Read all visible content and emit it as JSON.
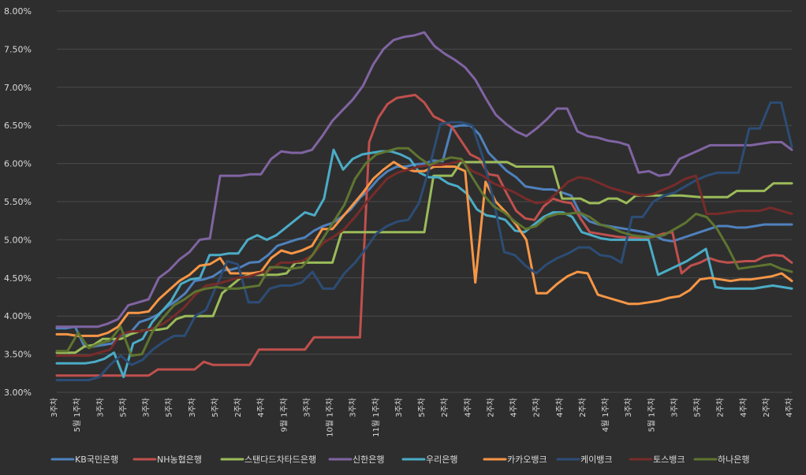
{
  "chart_data": {
    "type": "line",
    "title": "",
    "xlabel": "",
    "ylabel": "",
    "ylim": [
      3.0,
      8.0
    ],
    "y_ticks": [
      "3.00%",
      "3.50%",
      "4.00%",
      "4.50%",
      "5.00%",
      "5.50%",
      "6.00%",
      "6.50%",
      "7.00%",
      "7.50%",
      "8.00%"
    ],
    "grid": true,
    "legend_position": "bottom",
    "x_labels": [
      "3주차",
      "5월 1주차",
      "3주차",
      "5주차",
      "3주차",
      "5주차",
      "3주차",
      "5주차",
      "2주차",
      "4주차",
      "9월 1주차",
      "3주차",
      "10월 1주차",
      "3주차",
      "11월 1주차",
      "3주차",
      "5주차",
      "2주차",
      "4주차",
      "2주차",
      "4주차",
      "2주차",
      "4주차",
      "2주차",
      "4월 1주차",
      "3주차",
      "5월 1주차",
      "3주차",
      "5주차",
      "2주차",
      "4주차",
      "2주차",
      "4주차"
    ],
    "colors": {
      "KB국민은행": "#4f81bd",
      "NH농협은행": "#c0504d",
      "스탠다드차타드은행": "#9bbb59",
      "신한은행": "#8064a2",
      "우리은행": "#4bacc6",
      "카카오뱅크": "#f79646",
      "케이뱅크": "#2c4d75",
      "토스뱅크": "#772c2a",
      "하나은행": "#5f7530"
    },
    "series": [
      {
        "name": "KB국민은행",
        "values": [
          3.84,
          3.84,
          3.86,
          3.6,
          3.6,
          3.62,
          3.64,
          3.75,
          3.78,
          3.92,
          3.96,
          4.02,
          4.12,
          4.2,
          4.3,
          4.46,
          4.48,
          4.52,
          4.6,
          4.61,
          4.64,
          4.7,
          4.71,
          4.8,
          4.92,
          4.96,
          5.0,
          5.03,
          5.12,
          5.18,
          5.22,
          5.3,
          5.4,
          5.55,
          5.66,
          5.8,
          5.9,
          5.96,
          5.96,
          5.99,
          6.0,
          6.04,
          6.03,
          6.48,
          6.5,
          6.5,
          6.38,
          6.14,
          6.02,
          5.9,
          5.82,
          5.7,
          5.68,
          5.66,
          5.66,
          5.62,
          5.58,
          5.34,
          5.24,
          5.2,
          5.18,
          5.16,
          5.14,
          5.12,
          5.1,
          5.06,
          5.0,
          4.98,
          5.02,
          5.06,
          5.1,
          5.14,
          5.18,
          5.18,
          5.16,
          5.16,
          5.18,
          5.2,
          5.2,
          5.2,
          5.2
        ]
      },
      {
        "name": "NH농협은행",
        "values": [
          3.22,
          3.22,
          3.22,
          3.22,
          3.22,
          3.22,
          3.22,
          3.22,
          3.22,
          3.22,
          3.22,
          3.3,
          3.3,
          3.3,
          3.3,
          3.3,
          3.4,
          3.36,
          3.36,
          3.36,
          3.36,
          3.36,
          3.56,
          3.56,
          3.56,
          3.56,
          3.56,
          3.56,
          3.72,
          3.72,
          3.72,
          3.72,
          3.72,
          3.72,
          6.28,
          6.6,
          6.78,
          6.86,
          6.88,
          6.9,
          6.8,
          6.62,
          6.56,
          6.48,
          6.3,
          6.12,
          6.06,
          5.86,
          5.84,
          5.6,
          5.38,
          5.28,
          5.26,
          5.44,
          5.54,
          5.5,
          5.48,
          5.28,
          5.1,
          5.08,
          5.06,
          5.04,
          5.03,
          5.03,
          5.02,
          5.04,
          5.08,
          5.1,
          4.56,
          4.66,
          4.7,
          4.76,
          4.72,
          4.7,
          4.71,
          4.72,
          4.72,
          4.78,
          4.8,
          4.79,
          4.7
        ]
      },
      {
        "name": "스탠다드차타드은행",
        "values": [
          3.52,
          3.52,
          3.52,
          3.6,
          3.62,
          3.7,
          3.7,
          3.7,
          3.76,
          3.8,
          3.82,
          3.82,
          3.84,
          3.96,
          4.0,
          4.0,
          4.0,
          4.0,
          4.3,
          4.4,
          4.5,
          4.54,
          4.54,
          4.54,
          4.54,
          4.56,
          4.7,
          4.7,
          4.7,
          4.7,
          4.7,
          5.1,
          5.1,
          5.1,
          5.1,
          5.1,
          5.1,
          5.1,
          5.1,
          5.1,
          5.1,
          5.84,
          5.84,
          5.84,
          6.02,
          6.02,
          6.02,
          6.02,
          6.02,
          6.02,
          5.96,
          5.96,
          5.96,
          5.96,
          5.96,
          5.54,
          5.54,
          5.54,
          5.48,
          5.48,
          5.54,
          5.54,
          5.48,
          5.58,
          5.58,
          5.58,
          5.58,
          5.58,
          5.58,
          5.57,
          5.56,
          5.56,
          5.56,
          5.56,
          5.64,
          5.64,
          5.64,
          5.64,
          5.74,
          5.74,
          5.74
        ]
      },
      {
        "name": "신한은행",
        "values": [
          3.86,
          3.86,
          3.86,
          3.86,
          3.86,
          3.9,
          3.96,
          4.14,
          4.18,
          4.22,
          4.5,
          4.6,
          4.74,
          4.84,
          5.0,
          5.02,
          5.84,
          5.84,
          5.84,
          5.86,
          5.86,
          6.06,
          6.16,
          6.14,
          6.14,
          6.18,
          6.36,
          6.56,
          6.7,
          6.84,
          7.02,
          7.3,
          7.5,
          7.62,
          7.66,
          7.68,
          7.72,
          7.54,
          7.44,
          7.36,
          7.26,
          7.1,
          6.86,
          6.64,
          6.52,
          6.42,
          6.36,
          6.46,
          6.58,
          6.72,
          6.72,
          6.42,
          6.36,
          6.34,
          6.3,
          6.28,
          6.24,
          5.88,
          5.9,
          5.84,
          5.86,
          6.06,
          6.12,
          6.18,
          6.24,
          6.24,
          6.24,
          6.24,
          6.24,
          6.26,
          6.28,
          6.28,
          6.18
        ]
      },
      {
        "name": "우리은행",
        "values": [
          3.38,
          3.38,
          3.38,
          3.38,
          3.4,
          3.44,
          3.52,
          3.2,
          3.64,
          3.7,
          3.92,
          4.06,
          4.2,
          4.42,
          4.48,
          4.5,
          4.8,
          4.8,
          4.82,
          4.82,
          5.0,
          5.06,
          5.0,
          5.06,
          5.16,
          5.26,
          5.36,
          5.32,
          5.54,
          6.18,
          5.92,
          6.06,
          6.12,
          6.14,
          6.16,
          6.16,
          6.12,
          6.06,
          5.88,
          5.82,
          5.82,
          5.74,
          5.7,
          5.6,
          5.4,
          5.32,
          5.3,
          5.26,
          5.12,
          5.1,
          5.2,
          5.3,
          5.36,
          5.36,
          5.3,
          5.1,
          5.06,
          5.02,
          5.0,
          5.0,
          5.0,
          5.0,
          5.0,
          4.54,
          4.6,
          4.66,
          4.72,
          4.8,
          4.88,
          4.38,
          4.36,
          4.36,
          4.36,
          4.36,
          4.38,
          4.4,
          4.38,
          4.36
        ]
      },
      {
        "name": "카카오뱅크",
        "values": [
          3.76,
          3.76,
          3.74,
          3.74,
          3.74,
          3.78,
          3.86,
          4.04,
          4.04,
          4.06,
          4.22,
          4.34,
          4.46,
          4.54,
          4.66,
          4.68,
          4.76,
          4.56,
          4.56,
          4.56,
          4.58,
          4.76,
          4.86,
          4.82,
          4.86,
          4.92,
          5.14,
          5.14,
          5.3,
          5.46,
          5.62,
          5.8,
          5.92,
          6.02,
          5.94,
          5.9,
          5.9,
          5.96,
          5.96,
          5.96,
          5.9,
          4.44,
          5.76,
          5.5,
          5.36,
          5.2,
          5.0,
          4.3,
          4.3,
          4.42,
          4.52,
          4.58,
          4.56,
          4.28,
          4.24,
          4.2,
          4.16,
          4.16,
          4.18,
          4.2,
          4.24,
          4.26,
          4.34,
          4.48,
          4.5,
          4.48,
          4.46,
          4.48,
          4.48,
          4.5,
          4.52,
          4.56,
          4.46
        ]
      },
      {
        "name": "케이뱅크",
        "values": [
          3.16,
          3.16,
          3.16,
          3.16,
          3.2,
          3.36,
          3.48,
          3.36,
          3.42,
          3.56,
          3.66,
          3.74,
          3.74,
          4.0,
          4.08,
          4.4,
          4.72,
          4.68,
          4.18,
          4.18,
          4.36,
          4.4,
          4.4,
          4.44,
          4.58,
          4.36,
          4.36,
          4.56,
          4.7,
          4.88,
          5.08,
          5.18,
          5.24,
          5.26,
          5.48,
          5.96,
          6.52,
          6.54,
          6.54,
          6.5,
          6.08,
          5.52,
          4.84,
          4.8,
          4.66,
          4.56,
          4.68,
          4.76,
          4.82,
          4.9,
          4.9,
          4.8,
          4.78,
          4.7,
          5.3,
          5.3,
          5.5,
          5.58,
          5.62,
          5.7,
          5.78,
          5.84,
          5.88,
          5.88,
          5.88,
          6.46,
          6.46,
          6.8,
          6.8,
          6.22
        ]
      },
      {
        "name": "토스뱅크",
        "values": [
          3.48,
          3.48,
          3.48,
          3.48,
          3.52,
          3.56,
          3.76,
          3.8,
          3.8,
          3.84,
          3.9,
          4.0,
          4.12,
          4.28,
          4.4,
          4.42,
          4.46,
          4.5,
          4.52,
          4.56,
          4.6,
          4.7,
          4.7,
          4.72,
          4.8,
          4.96,
          5.04,
          5.14,
          5.3,
          5.48,
          5.64,
          5.8,
          5.88,
          5.92,
          5.96,
          5.98,
          5.98,
          6.0,
          6.04,
          5.9,
          5.84,
          5.74,
          5.68,
          5.62,
          5.54,
          5.48,
          5.5,
          5.62,
          5.76,
          5.82,
          5.8,
          5.74,
          5.68,
          5.64,
          5.6,
          5.58,
          5.6,
          5.66,
          5.72,
          5.8,
          5.84,
          5.34,
          5.34,
          5.36,
          5.38,
          5.38,
          5.38,
          5.42,
          5.38,
          5.34
        ]
      },
      {
        "name": "하나은행",
        "values": [
          3.54,
          3.54,
          3.78,
          3.58,
          3.64,
          3.68,
          3.86,
          3.48,
          3.5,
          3.8,
          3.98,
          4.14,
          4.22,
          4.32,
          4.36,
          4.38,
          4.36,
          4.36,
          4.38,
          4.4,
          4.64,
          4.64,
          4.62,
          4.64,
          4.8,
          5.02,
          5.24,
          5.46,
          5.8,
          6.0,
          6.12,
          6.16,
          6.2,
          6.2,
          6.08,
          5.98,
          6.04,
          6.08,
          6.06,
          5.82,
          5.6,
          5.44,
          5.36,
          5.24,
          5.14,
          5.18,
          5.3,
          5.34,
          5.34,
          5.36,
          5.3,
          5.2,
          5.16,
          5.1,
          5.06,
          5.04,
          5.04,
          5.06,
          5.14,
          5.22,
          5.34,
          5.3,
          5.14,
          4.9,
          4.62,
          4.64,
          4.66,
          4.68,
          4.62,
          4.58
        ]
      }
    ]
  }
}
